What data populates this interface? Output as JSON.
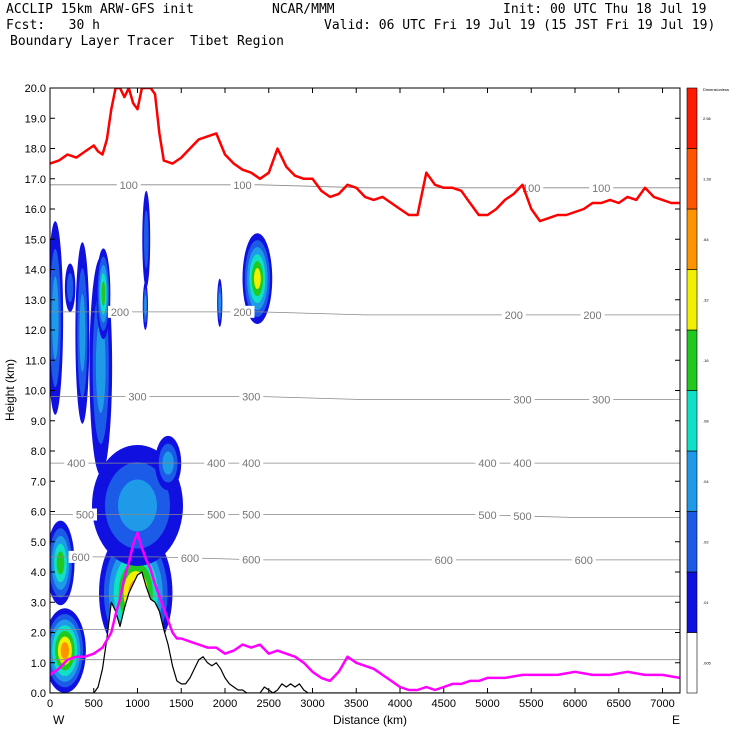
{
  "header": {
    "line1_left": "ACCLIP 15km ARW-GFS init",
    "line1_center": "NCAR/MMM",
    "line1_right": "Init: 00 UTC Thu 18 Jul 19",
    "line2_left": "Fcst:   30 h",
    "line2_right": "Valid: 06 UTC Fri 19 Jul 19 (15 JST Fri 19 Jul 19)",
    "line3_left": "Boundary Layer Tracer  Tibet Region"
  },
  "chart_data": {
    "type": "cross-section",
    "xlabel": "Distance (km)",
    "ylabel": "Height (km)",
    "xlim": [
      0,
      7200
    ],
    "ylim": [
      0,
      20
    ],
    "x_ticks": [
      0,
      500,
      1000,
      1500,
      2000,
      2500,
      3000,
      3500,
      4000,
      4500,
      5000,
      5500,
      6000,
      6500,
      7000
    ],
    "y_ticks": [
      "0.0",
      "1.0",
      "2.0",
      "3.0",
      "4.0",
      "5.0",
      "6.0",
      "7.0",
      "8.0",
      "9.0",
      "10.0",
      "11.0",
      "12.0",
      "13.0",
      "14.0",
      "15.0",
      "16.0",
      "17.0",
      "18.0",
      "19.0",
      "20.0"
    ],
    "left_end_label": "W",
    "right_end_label": "E",
    "colorbar": {
      "title": "Dimensionless",
      "labels": [
        ".005",
        ".01",
        ".02",
        ".04",
        ".08",
        ".16",
        ".32",
        ".64",
        "1.28",
        "2.56"
      ],
      "colors": [
        "#ffffff",
        "#1010e0",
        "#1c5ae8",
        "#1e9ae8",
        "#10e0c8",
        "#20c820",
        "#f0f000",
        "#ff9400",
        "#ff5500",
        "#ff1a00"
      ],
      "color_names": [
        "white",
        "dark blue",
        "blue",
        "light blue",
        "cyan",
        "green",
        "yellow",
        "orange",
        "red-orange",
        "red"
      ]
    },
    "pressure_contours": [
      {
        "level": 100,
        "heights": [
          16.8,
          16.8,
          16.8,
          16.7,
          16.7,
          16.7,
          16.7
        ],
        "label_x": [
          900,
          2200,
          5500,
          6300
        ],
        "label_texts": [
          "100",
          "100",
          "100",
          "100"
        ]
      },
      {
        "level": 200,
        "heights": [
          12.6,
          12.6,
          12.6,
          12.5,
          12.5,
          12.5,
          12.5
        ],
        "label_x": [
          800,
          2200,
          5300,
          6200
        ],
        "label_texts": [
          "200",
          "200",
          "200",
          "200"
        ]
      },
      {
        "level": 300,
        "heights": [
          9.8,
          9.8,
          9.8,
          9.7,
          9.7,
          9.7,
          9.7
        ],
        "label_x": [
          1000,
          2300,
          5400,
          6300
        ],
        "label_texts": [
          "300",
          "300",
          "300",
          "300"
        ]
      },
      {
        "level": 400,
        "heights": [
          7.6,
          7.6,
          7.6,
          7.6,
          7.6,
          7.6,
          7.6
        ],
        "label_x": [
          300,
          1900,
          2300,
          5000,
          5400
        ],
        "label_texts": [
          "400",
          "400",
          "400",
          "400",
          "400"
        ]
      },
      {
        "level": 500,
        "heights": [
          5.9,
          5.9,
          5.9,
          5.9,
          5.9,
          5.8,
          5.8
        ],
        "label_x": [
          400,
          1900,
          2300,
          5000,
          5400
        ],
        "label_texts": [
          "500",
          "500",
          "500",
          "500",
          "500"
        ]
      },
      {
        "level": 600,
        "heights": [
          4.5,
          4.5,
          4.4,
          4.4,
          4.4,
          4.4,
          4.4
        ],
        "label_x": [
          350,
          1600,
          2300,
          4500,
          6100
        ],
        "label_texts": [
          "600",
          "600",
          "600",
          "600",
          "600"
        ]
      }
    ],
    "lower_contour_heights": [
      3.2,
      2.1,
      1.1
    ],
    "contour_x": [
      0,
      1200,
      2400,
      3600,
      4800,
      6000,
      7200
    ],
    "tropopause_red": {
      "x": [
        0,
        100,
        200,
        300,
        400,
        500,
        550,
        600,
        650,
        700,
        750,
        800,
        850,
        900,
        950,
        1000,
        1050,
        1100,
        1150,
        1200,
        1250,
        1300,
        1400,
        1500,
        1600,
        1700,
        1800,
        1900,
        2000,
        2100,
        2200,
        2300,
        2400,
        2500,
        2600,
        2700,
        2800,
        2900,
        3000,
        3100,
        3200,
        3300,
        3400,
        3500,
        3600,
        3700,
        3800,
        3900,
        4000,
        4100,
        4200,
        4300,
        4400,
        4500,
        4600,
        4700,
        4800,
        4900,
        5000,
        5100,
        5200,
        5300,
        5400,
        5500,
        5600,
        5700,
        5800,
        5900,
        6000,
        6100,
        6200,
        6300,
        6400,
        6500,
        6600,
        6700,
        6800,
        6900,
        7000,
        7100,
        7200
      ],
      "y": [
        17.5,
        17.6,
        17.8,
        17.7,
        17.9,
        18.1,
        17.9,
        17.8,
        18.3,
        19.3,
        20.0,
        20.0,
        19.7,
        20.0,
        19.5,
        19.3,
        20.0,
        20.0,
        20.0,
        19.8,
        18.5,
        17.6,
        17.5,
        17.7,
        18.0,
        18.3,
        18.4,
        18.5,
        17.8,
        17.5,
        17.3,
        17.2,
        17.0,
        17.2,
        18.0,
        17.4,
        17.1,
        17.0,
        17.0,
        16.6,
        16.4,
        16.5,
        16.8,
        16.7,
        16.4,
        16.3,
        16.4,
        16.2,
        16.0,
        15.8,
        15.8,
        17.2,
        16.8,
        16.7,
        16.7,
        16.6,
        16.2,
        15.8,
        15.8,
        16.0,
        16.3,
        16.5,
        16.8,
        16.0,
        15.6,
        15.7,
        15.8,
        15.8,
        15.9,
        16.0,
        16.2,
        16.2,
        16.3,
        16.2,
        16.4,
        16.3,
        16.7,
        16.4,
        16.3,
        16.2,
        16.2
      ]
    },
    "boundary_layer_magenta": {
      "x": [
        0,
        100,
        200,
        300,
        400,
        500,
        600,
        700,
        750,
        800,
        850,
        900,
        950,
        1000,
        1050,
        1100,
        1150,
        1200,
        1250,
        1300,
        1350,
        1400,
        1450,
        1500,
        1600,
        1700,
        1800,
        1900,
        2000,
        2100,
        2200,
        2300,
        2400,
        2500,
        2600,
        2700,
        2800,
        2900,
        3000,
        3100,
        3200,
        3300,
        3400,
        3500,
        3600,
        3700,
        3800,
        3900,
        4000,
        4100,
        4200,
        4300,
        4400,
        4500,
        4600,
        4700,
        4800,
        4900,
        5000,
        5200,
        5400,
        5600,
        5800,
        6000,
        6200,
        6400,
        6600,
        6800,
        7000,
        7200
      ],
      "y": [
        0.6,
        0.8,
        1.1,
        1.2,
        1.2,
        1.3,
        1.5,
        2.0,
        2.6,
        3.1,
        3.8,
        4.3,
        4.9,
        5.3,
        4.8,
        4.4,
        4.1,
        3.6,
        3.2,
        2.8,
        2.4,
        2.0,
        1.8,
        1.8,
        1.7,
        1.6,
        1.5,
        1.5,
        1.3,
        1.4,
        1.6,
        1.5,
        1.6,
        1.3,
        1.4,
        1.3,
        1.2,
        1.0,
        0.7,
        0.5,
        0.4,
        0.7,
        1.2,
        1.0,
        0.9,
        0.8,
        0.6,
        0.4,
        0.2,
        0.1,
        0.1,
        0.2,
        0.1,
        0.2,
        0.3,
        0.3,
        0.4,
        0.4,
        0.5,
        0.5,
        0.6,
        0.6,
        0.6,
        0.7,
        0.6,
        0.6,
        0.7,
        0.6,
        0.6,
        0.5
      ]
    },
    "terrain_black": {
      "x": [
        0,
        500,
        550,
        600,
        650,
        700,
        750,
        800,
        850,
        900,
        950,
        1000,
        1050,
        1100,
        1150,
        1200,
        1250,
        1300,
        1350,
        1400,
        1450,
        1500,
        1550,
        1600,
        1650,
        1700,
        1750,
        1800,
        1850,
        1900,
        1950,
        2000,
        2050,
        2100,
        2150,
        2200,
        2250,
        2300,
        2400,
        2450,
        2500,
        2550,
        2600,
        2650,
        2700,
        2750,
        2800,
        2850,
        2900,
        2950,
        7200
      ],
      "y": [
        0,
        0,
        0.2,
        0.8,
        1.8,
        3.0,
        2.7,
        2.2,
        2.8,
        3.3,
        3.6,
        3.9,
        4.0,
        3.5,
        3.1,
        3.0,
        2.7,
        2.1,
        1.6,
        0.9,
        0.4,
        0.3,
        0.3,
        0.5,
        0.8,
        1.1,
        1.2,
        1.0,
        0.9,
        1.0,
        0.8,
        0.5,
        0.3,
        0.2,
        0.1,
        0.1,
        0.0,
        0.0,
        0.0,
        0.2,
        0.1,
        0.0,
        0.1,
        0.3,
        0.2,
        0.3,
        0.2,
        0.3,
        0.1,
        0.0,
        0.0
      ]
    },
    "tracer_blobs": [
      {
        "cx": 170,
        "cy": 1.4,
        "rx": 240,
        "ry": 1.4,
        "level": 7
      },
      {
        "cx": 980,
        "cy": 3.3,
        "rx": 420,
        "ry": 2.2,
        "level": 7
      },
      {
        "cx": 120,
        "cy": 4.3,
        "rx": 160,
        "ry": 1.4,
        "level": 5
      },
      {
        "cx": 1000,
        "cy": 6.2,
        "rx": 520,
        "ry": 2.0,
        "level": 3
      },
      {
        "cx": 1350,
        "cy": 7.6,
        "rx": 150,
        "ry": 0.9,
        "level": 3
      },
      {
        "cx": 580,
        "cy": 10.8,
        "rx": 130,
        "ry": 3.6,
        "level": 3
      },
      {
        "cx": 610,
        "cy": 13.2,
        "rx": 80,
        "ry": 1.5,
        "level": 5
      },
      {
        "cx": 60,
        "cy": 12.4,
        "rx": 90,
        "ry": 3.2,
        "level": 3
      },
      {
        "cx": 230,
        "cy": 13.4,
        "rx": 60,
        "ry": 0.8,
        "level": 2
      },
      {
        "cx": 370,
        "cy": 11.9,
        "rx": 80,
        "ry": 3.0,
        "level": 3
      },
      {
        "cx": 1090,
        "cy": 12.8,
        "rx": 30,
        "ry": 0.8,
        "level": 3
      },
      {
        "cx": 1100,
        "cy": 15.0,
        "rx": 45,
        "ry": 1.6,
        "level": 2
      },
      {
        "cx": 1940,
        "cy": 12.9,
        "rx": 30,
        "ry": 0.8,
        "level": 3
      },
      {
        "cx": 2370,
        "cy": 13.7,
        "rx": 170,
        "ry": 1.5,
        "level": 6
      }
    ]
  }
}
